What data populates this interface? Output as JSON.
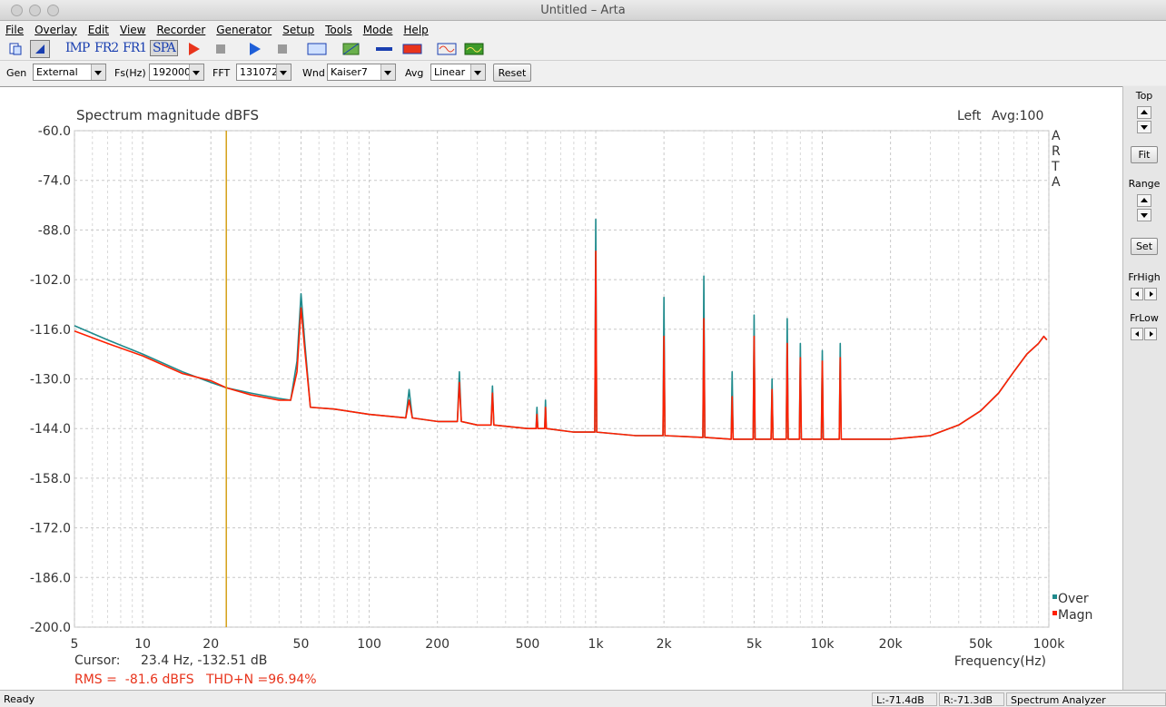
{
  "window": {
    "title": "Untitled – Arta"
  },
  "menu": [
    "File",
    "Overlay",
    "Edit",
    "View",
    "Recorder",
    "Generator",
    "Setup",
    "Tools",
    "Mode",
    "Help"
  ],
  "toolbar": [
    "IMP",
    "FR2",
    "FR1",
    "SPA"
  ],
  "controls": {
    "gen_label": "Gen",
    "gen": "External",
    "fs_label": "Fs(Hz)",
    "fs": "192000",
    "fft_label": "FFT",
    "fft": "131072",
    "wnd_label": "Wnd",
    "wnd": "Kaiser7",
    "avg_label": "Avg",
    "avg": "Linear",
    "reset": "Reset"
  },
  "chart_data": {
    "type": "line",
    "title": "Spectrum magnitude dBFS",
    "channel": "Left",
    "average": "Avg:100",
    "watermark": "ARTA",
    "x_label": "Frequency(Hz)",
    "log_x": true,
    "grid": true,
    "xlim": [
      5,
      100000
    ],
    "ylim": [
      -200,
      -60
    ],
    "xticks": [
      5,
      10,
      20,
      50,
      100,
      200,
      500,
      {
        "value": 1000,
        "label": "1k"
      },
      {
        "value": 2000,
        "label": "2k"
      },
      {
        "value": 5000,
        "label": "5k"
      },
      {
        "value": 10000,
        "label": "10k"
      },
      {
        "value": 20000,
        "label": "20k"
      },
      {
        "value": 50000,
        "label": "50k"
      },
      {
        "value": 100000,
        "label": "100k"
      }
    ],
    "x_minor_ticks": [
      6,
      7,
      8,
      9,
      30,
      40,
      60,
      70,
      80,
      90,
      300,
      400,
      600,
      700,
      800,
      900,
      3000,
      4000,
      6000,
      7000,
      8000,
      9000,
      30000,
      40000,
      60000,
      70000,
      80000,
      90000
    ],
    "yticks": [
      {
        "value": -60,
        "label": "-60.0"
      },
      {
        "value": -74,
        "label": "-74.0"
      },
      {
        "value": -88,
        "label": "-88.0"
      },
      {
        "value": -102,
        "label": "-102.0"
      },
      {
        "value": -116,
        "label": "-116.0"
      },
      {
        "value": -130,
        "label": "-130.0"
      },
      {
        "value": -144,
        "label": "-144.0"
      },
      {
        "value": -158,
        "label": "-158.0"
      },
      {
        "value": -172,
        "label": "-172.0"
      },
      {
        "value": -186,
        "label": "-186.0"
      },
      {
        "value": -200,
        "label": "-200.0"
      }
    ],
    "x": [
      5,
      7,
      10,
      15,
      20,
      23.4,
      30,
      40,
      45,
      48,
      50,
      52,
      55,
      70,
      100,
      145,
      150,
      155,
      200,
      245,
      250,
      255,
      300,
      345,
      350,
      355,
      500,
      545,
      550,
      555,
      595,
      600,
      605,
      800,
      990,
      1000,
      1010,
      1500,
      1980,
      2000,
      2020,
      2970,
      3000,
      3030,
      3960,
      4000,
      4040,
      4950,
      5000,
      5050,
      5940,
      6000,
      6060,
      6930,
      7000,
      7070,
      7920,
      8000,
      8080,
      9900,
      10000,
      10100,
      11880,
      12000,
      12120,
      15000,
      20000,
      30000,
      40000,
      50000,
      60000,
      70000,
      80000,
      90000,
      95000,
      98000
    ],
    "series": [
      {
        "name": "Over",
        "color": "#1f8a8c",
        "values": [
          -115,
          -119,
          -123,
          -128,
          -131,
          -132.5,
          -134,
          -135.5,
          -136,
          -125,
          -106,
          -120,
          -138,
          -138.5,
          -140,
          -141,
          -133,
          -141,
          -142,
          -142,
          -128,
          -142,
          -143,
          -143,
          -132,
          -143,
          -144,
          -144,
          -138,
          -144,
          -144,
          -136,
          -144,
          -145,
          -145,
          -85,
          -145,
          -146,
          -146,
          -107,
          -146,
          -146.5,
          -101,
          -146.5,
          -147,
          -128,
          -147,
          -147,
          -112,
          -147,
          -147,
          -130,
          -147,
          -147,
          -113,
          -147,
          -147,
          -120,
          -147,
          -147,
          -122,
          -147,
          -147,
          -120,
          -147,
          -147,
          -147,
          -146,
          -143,
          -139,
          -134,
          -128,
          -123,
          -120,
          -118,
          -119
        ]
      },
      {
        "name": "Magn",
        "color": "#ff2000",
        "values": [
          -116.5,
          -120,
          -123.5,
          -128.5,
          -130.5,
          -132.5,
          -134.5,
          -136,
          -136,
          -128,
          -110,
          -122,
          -138,
          -138.5,
          -140,
          -141,
          -136,
          -141,
          -142,
          -142,
          -131,
          -142,
          -143,
          -143,
          -134,
          -143,
          -144,
          -144,
          -140,
          -144,
          -144,
          -138,
          -144,
          -145,
          -145,
          -94,
          -145,
          -146,
          -146,
          -118,
          -146,
          -146.5,
          -113,
          -146.5,
          -147,
          -135,
          -147,
          -147,
          -118,
          -147,
          -147,
          -133,
          -147,
          -147,
          -120,
          -147,
          -147,
          -124,
          -147,
          -147,
          -125,
          -147,
          -147,
          -124,
          -147,
          -147,
          -147,
          -146,
          -143,
          -139,
          -134,
          -128,
          -123,
          -120,
          -118,
          -119
        ]
      }
    ],
    "cursor": {
      "label": "Cursor:",
      "text": "23.4 Hz, -132.51 dB",
      "x": 23.4,
      "color": "#d4a017"
    },
    "summary": "RMS =  -81.6 dBFS   THD+N =96.94%"
  },
  "side_panel": {
    "top": "Top",
    "fit": "Fit",
    "range": "Range",
    "set": "Set",
    "fr_high": "FrHigh",
    "fr_low": "FrLow"
  },
  "status": {
    "ready": "Ready",
    "left": "L:-71.4dB",
    "right": "R:-71.3dB",
    "mode": "Spectrum Analyzer"
  }
}
